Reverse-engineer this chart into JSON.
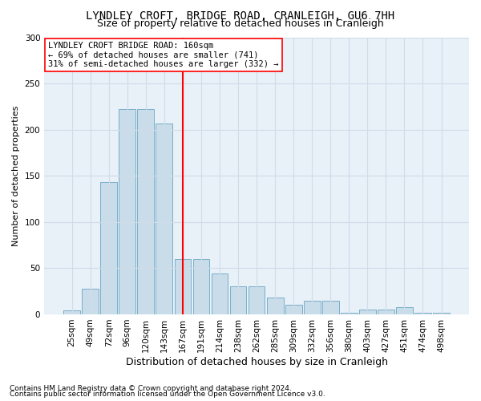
{
  "title": "LYNDLEY CROFT, BRIDGE ROAD, CRANLEIGH, GU6 7HH",
  "subtitle": "Size of property relative to detached houses in Cranleigh",
  "xlabel": "Distribution of detached houses by size in Cranleigh",
  "ylabel": "Number of detached properties",
  "categories": [
    "25sqm",
    "49sqm",
    "72sqm",
    "96sqm",
    "120sqm",
    "143sqm",
    "167sqm",
    "191sqm",
    "214sqm",
    "238sqm",
    "262sqm",
    "285sqm",
    "309sqm",
    "332sqm",
    "356sqm",
    "380sqm",
    "403sqm",
    "427sqm",
    "451sqm",
    "474sqm",
    "498sqm"
  ],
  "values": [
    4,
    28,
    143,
    222,
    222,
    207,
    60,
    60,
    44,
    30,
    30,
    18,
    10,
    15,
    15,
    2,
    5,
    5,
    8,
    2,
    2
  ],
  "bar_color": "#c9dcea",
  "bar_edge_color": "#7aaec8",
  "vline_x": 6,
  "vline_color": "red",
  "annotation_text": "LYNDLEY CROFT BRIDGE ROAD: 160sqm\n← 69% of detached houses are smaller (741)\n31% of semi-detached houses are larger (332) →",
  "annotation_box_color": "white",
  "annotation_box_edge": "red",
  "ylim": [
    0,
    300
  ],
  "yticks": [
    0,
    50,
    100,
    150,
    200,
    250,
    300
  ],
  "background_color": "#e8f0f8",
  "grid_color": "#d0dce8",
  "footnote1": "Contains HM Land Registry data © Crown copyright and database right 2024.",
  "footnote2": "Contains public sector information licensed under the Open Government Licence v3.0.",
  "title_fontsize": 10,
  "subtitle_fontsize": 9,
  "ylabel_fontsize": 8,
  "xlabel_fontsize": 9,
  "tick_fontsize": 7.5,
  "annot_fontsize": 7.5,
  "footnote_fontsize": 6.5
}
